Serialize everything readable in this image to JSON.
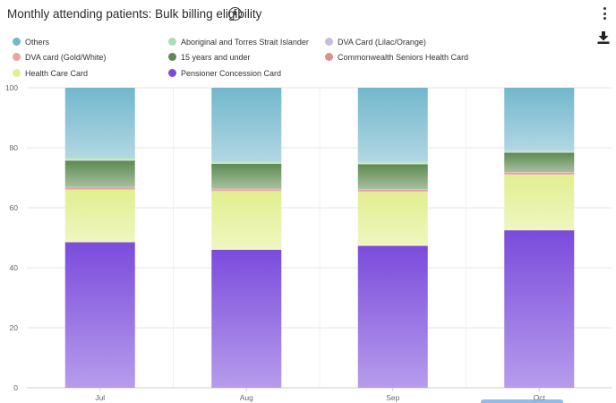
{
  "header": {
    "title": "Monthly attending patients: Bulk billing eligibility",
    "info_icon": "info-circle-icon",
    "menu_icon": "more-vertical-icon",
    "download_icon": "download-icon"
  },
  "chart_data": {
    "type": "bar",
    "stacked": true,
    "title": "",
    "xlabel": "",
    "ylabel": "",
    "ylim": [
      0,
      100
    ],
    "yticks": [
      0,
      20,
      40,
      60,
      80,
      100
    ],
    "grid": true,
    "legend_position": "top",
    "categories": [
      "Jul",
      "Aug",
      "Sep",
      "Oct"
    ],
    "series": [
      {
        "name": "Pensioner Concession Card",
        "color": "#7b4bdc",
        "values": [
          48.5,
          46,
          47.3,
          52.5
        ]
      },
      {
        "name": "Health Care Card",
        "color": "#e2ef8f",
        "values": [
          17.5,
          19.5,
          18,
          18.5
        ]
      },
      {
        "name": "Commonwealth Seniors Health Card",
        "color": "#e08f8f",
        "values": [
          0.7,
          0.7,
          0.7,
          0.7
        ]
      },
      {
        "name": "DVA card (Gold/White)",
        "color": "#e8a5a0",
        "values": [
          0.2,
          0.2,
          0.2,
          0.2
        ]
      },
      {
        "name": "15 years and under",
        "color": "#5d8a50",
        "values": [
          8.8,
          8.3,
          8.3,
          6.5
        ]
      },
      {
        "name": "DVA Card (Lilac/Orange)",
        "color": "#c8bbe0",
        "values": [
          0.2,
          0.1,
          0.2,
          0.1
        ]
      },
      {
        "name": "Aboriginal and Torres Strait Islander",
        "color": "#a8e0b4",
        "values": [
          0.8,
          0.7,
          0.6,
          0.7
        ]
      },
      {
        "name": "Others",
        "color": "#72b7cc",
        "values": [
          23.3,
          24.5,
          24.7,
          20.8
        ]
      }
    ]
  },
  "legend": [
    {
      "label": "Others",
      "color": "#72b7cc"
    },
    {
      "label": "Aboriginal and Torres Strait Islander",
      "color": "#a8e0b4"
    },
    {
      "label": "DVA Card (Lilac/Orange)",
      "color": "#c8bbe0"
    },
    {
      "label": "DVA card (Gold/White)",
      "color": "#e8a5a0"
    },
    {
      "label": "15 years and under",
      "color": "#5d8a50"
    },
    {
      "label": "Commonwealth Seniors Health Card",
      "color": "#e08f8f"
    },
    {
      "label": "Health Care Card",
      "color": "#e2ef8f"
    },
    {
      "label": "Pensioner Concession Card",
      "color": "#7b4bdc"
    }
  ]
}
